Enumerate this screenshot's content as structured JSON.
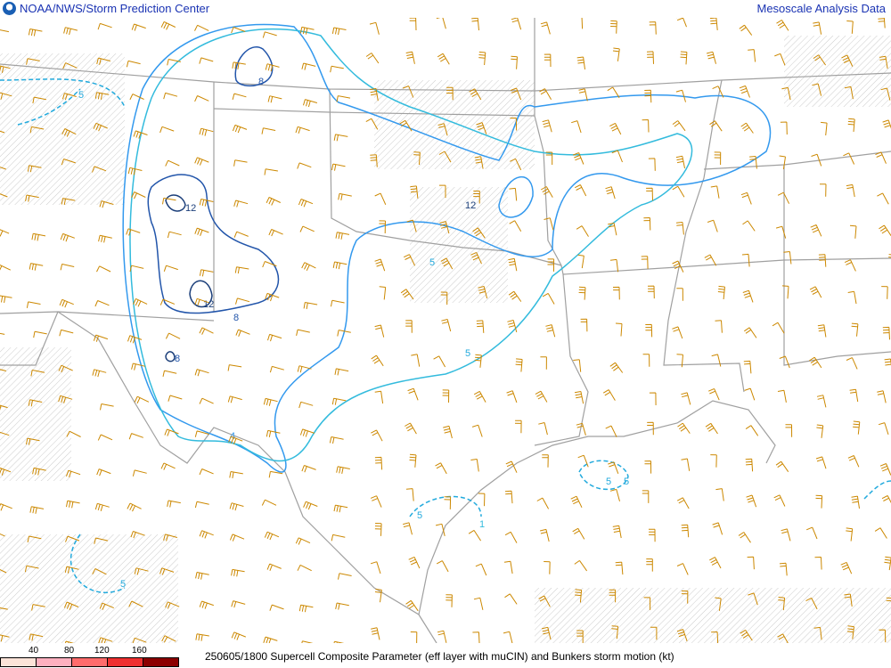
{
  "header": {
    "organization": "NOAA/NWS/Storm Prediction Center",
    "product": "Mesoscale Analysis Data",
    "logo_icon": "noaa-logo"
  },
  "legend": {
    "ticks": [
      "40",
      "80",
      "120",
      "160"
    ],
    "colors": [
      "#fbe3d8",
      "#fdb0bf",
      "#ff6c6c",
      "#ee3030",
      "#8b0000"
    ]
  },
  "caption": "250605/1800 Supercell Composite Parameter (eff layer with muCIN) and Bunkers storm motion (kt)",
  "map": {
    "border_color": "#a0a0a0",
    "barb_color": "#cc8800",
    "contour_colors": {
      "1": "#33bbdd",
      "4": "#3399ee",
      "5": "#22aadd",
      "8": "#2255aa",
      "12": "#1c3f7a"
    },
    "contour_labels": [
      "5",
      "8",
      "12",
      "12",
      "8",
      "8",
      "4",
      "12",
      "5",
      "5",
      "5",
      "5",
      "1",
      "5",
      "5"
    ]
  }
}
